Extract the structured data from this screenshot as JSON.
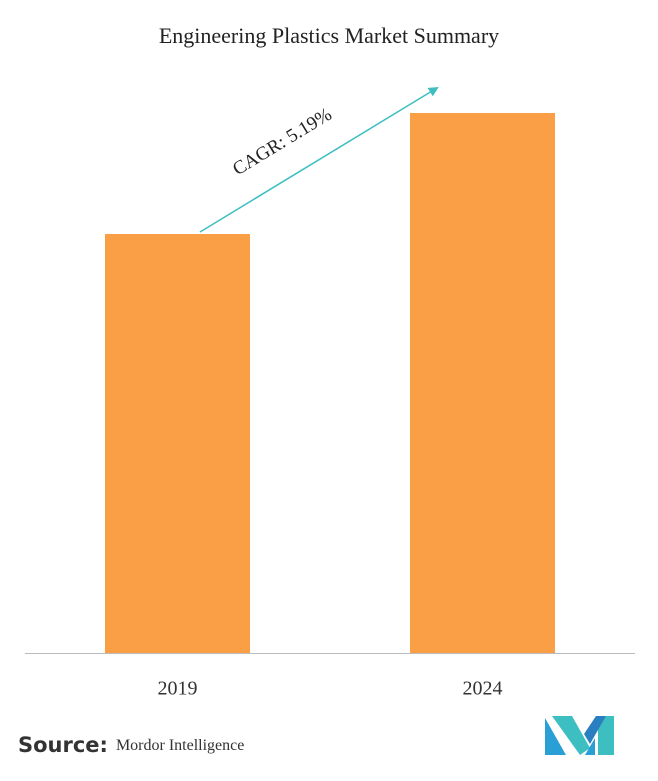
{
  "chart_data": {
    "type": "bar",
    "title": "Engineering Plastics Market Summary",
    "categories": [
      "2019",
      "2024"
    ],
    "values": [
      419,
      540
    ],
    "color": "#fb9f47",
    "ylim": [
      0,
      560
    ],
    "grid": false,
    "annotation": "CAGR: 5.19%",
    "annotation_color": "#3dbfc1",
    "source_label": "Source:",
    "source": "Mordor Intelligence"
  }
}
